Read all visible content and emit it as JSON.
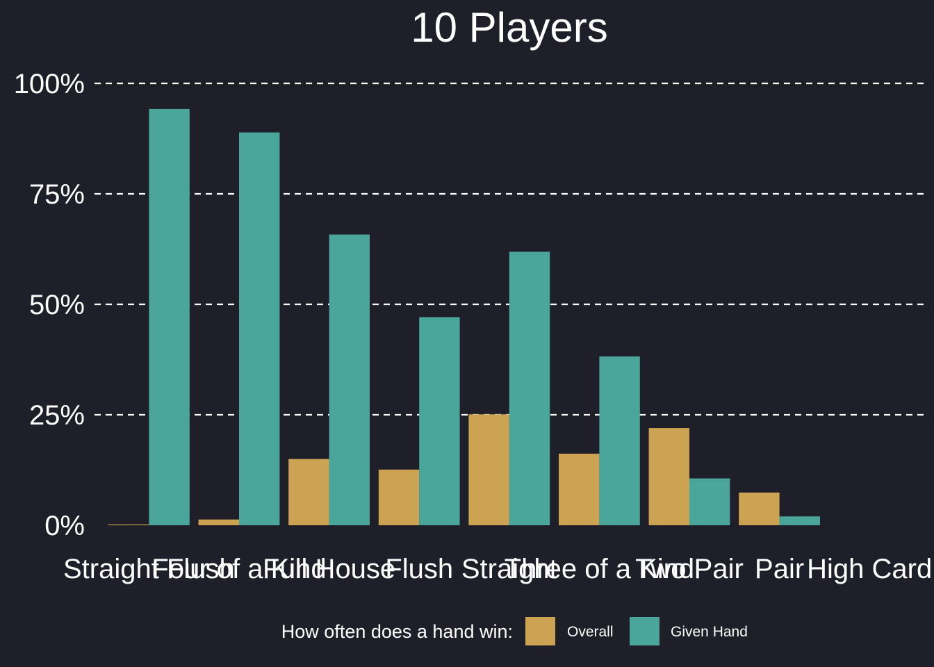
{
  "chart_data": {
    "type": "bar",
    "title": "10 Players",
    "xlabel": "",
    "ylabel": "",
    "categories": [
      "Straight Flush",
      "Four of a Kind",
      "Full House",
      "Flush",
      "Straight",
      "Three of a Kind",
      "Two Pair",
      "Pair",
      "High Card"
    ],
    "series": [
      {
        "name": "Overall",
        "values": [
          0.1,
          1.3,
          15.0,
          12.6,
          25.1,
          16.2,
          22.0,
          7.4,
          0.0
        ],
        "color": "#cca352"
      },
      {
        "name": "Given Hand",
        "values": [
          94.2,
          88.9,
          65.8,
          47.1,
          61.9,
          38.2,
          10.6,
          2.0,
          0.0
        ],
        "color": "#4aa59a"
      }
    ],
    "ylim": [
      0,
      100
    ],
    "yticks": [
      0,
      25,
      50,
      75,
      100
    ],
    "ytick_labels": [
      "0%",
      "25%",
      "50%",
      "75%",
      "100%"
    ],
    "grid": "horizontal-dashed",
    "legend": {
      "title": "How often does a hand win:",
      "position": "bottom",
      "entries": [
        "Overall",
        "Given Hand"
      ]
    },
    "background": "#1e1f28"
  }
}
